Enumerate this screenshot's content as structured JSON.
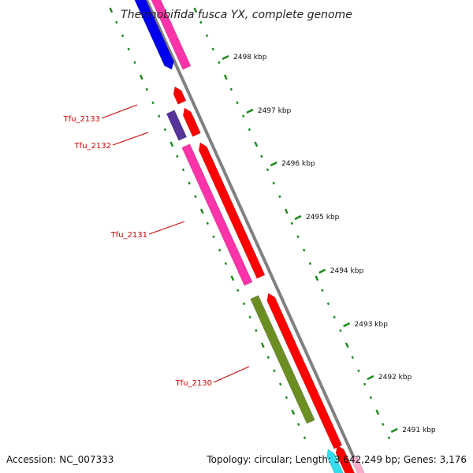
{
  "title": "Thermobifida fusca YX, complete genome",
  "footer": {
    "accession": "Accession: NC_007333",
    "info": "Topology: circular; Length: 3,642,249 bp; Genes: 3,176"
  },
  "ticks": [
    {
      "label": "2498 kbp"
    },
    {
      "label": "2497 kbp"
    },
    {
      "label": "2496 kbp"
    },
    {
      "label": "2495 kbp"
    },
    {
      "label": "2494 kbp"
    },
    {
      "label": "2493 kbp"
    },
    {
      "label": "2492 kbp"
    },
    {
      "label": "2491 kbp"
    }
  ],
  "genes": [
    {
      "label": "Tfu_2133"
    },
    {
      "label": "Tfu_2132"
    },
    {
      "label": "Tfu_2131"
    },
    {
      "label": "Tfu_2130"
    }
  ],
  "colors": {
    "backbone": "#808080",
    "cds_forward": "#ff0000",
    "cds_magenta": "#ff33aa",
    "cds_blue": "#0000ee",
    "cds_purple": "#553399",
    "cds_olive": "#6b8e23",
    "cds_cyan": "#33ddee",
    "cds_pink": "#ffaacc",
    "gc_dots": "#1a8a1a",
    "label_red": "#cc0000"
  }
}
